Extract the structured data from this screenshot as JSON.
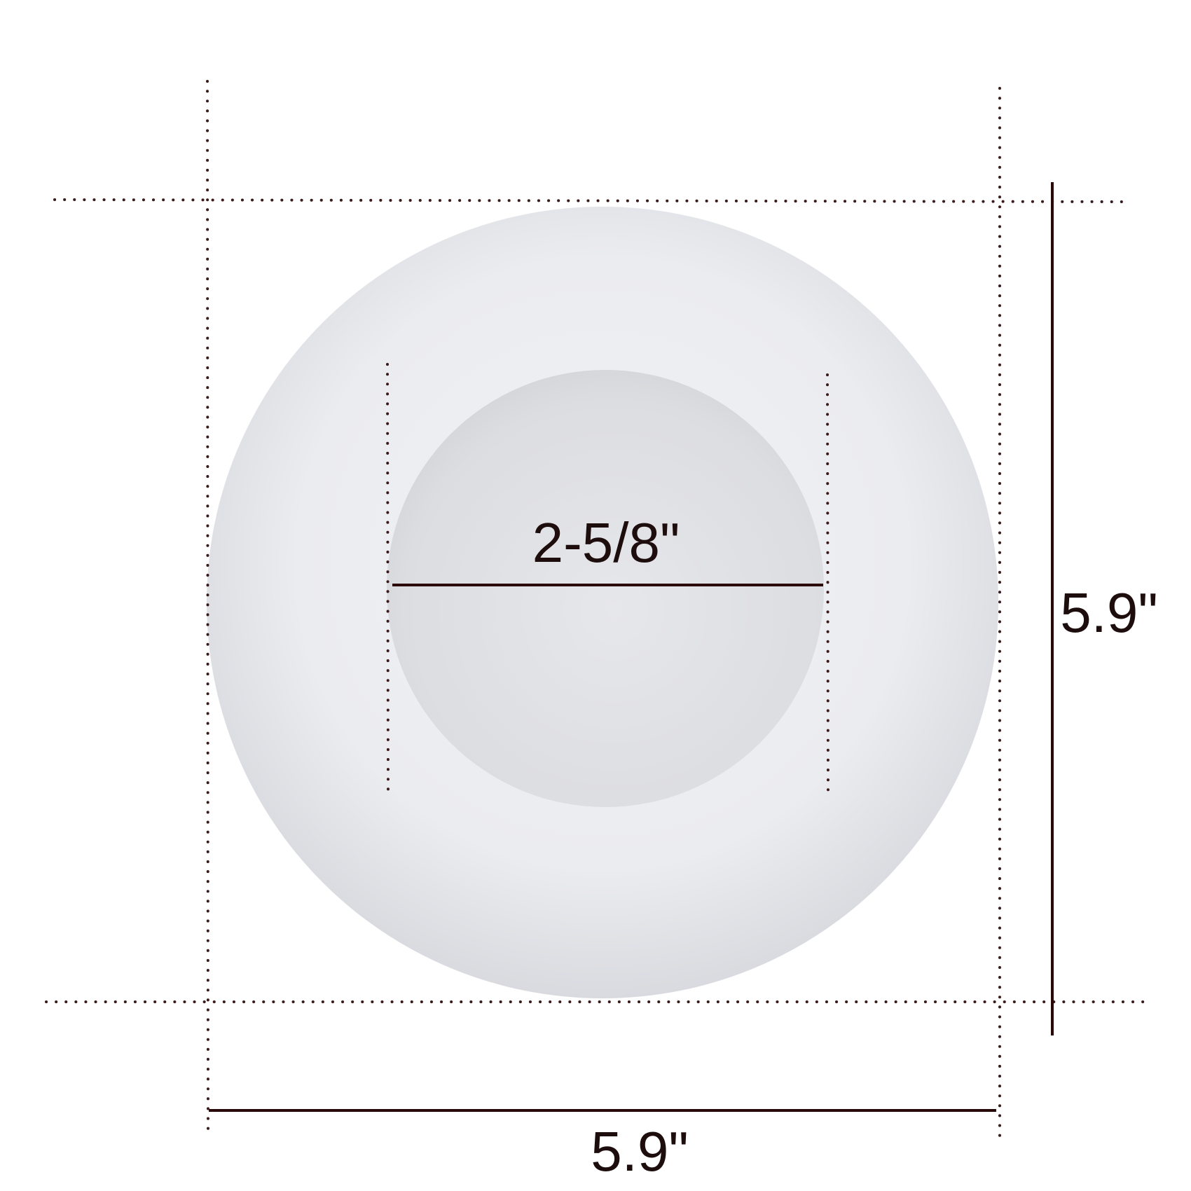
{
  "diagram": {
    "inner_diameter_label": "2-5/8\"",
    "height_label": "5.9\"",
    "width_label": "5.9\""
  },
  "colors": {
    "background": "#ffffff",
    "dimension_line": "#2a0808",
    "guide_dots": "#3a1a1a",
    "globe_outer_light": "#f3f4f7",
    "globe_outer_mid": "#e5e6ea",
    "globe_outer_edge": "#d6d7dc",
    "globe_inner": "#dcdde1",
    "label_text": "#1e0d0d"
  }
}
